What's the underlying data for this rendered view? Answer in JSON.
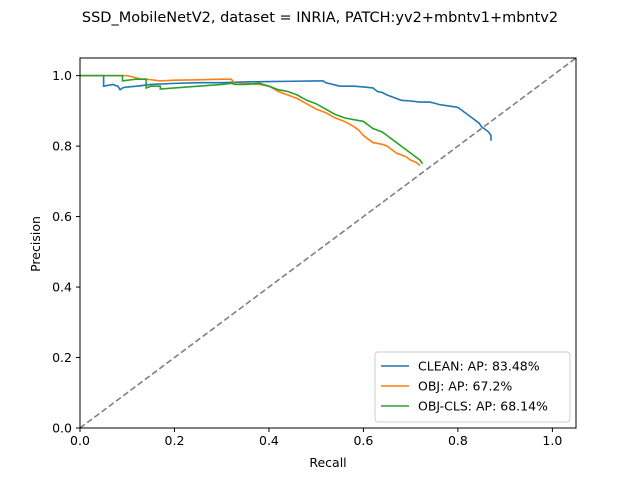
{
  "chart_data": {
    "type": "line",
    "title": "SSD_MobileNetV2, dataset = INRIA, PATCH:yv2+mbntv1+mbntv2",
    "xlabel": "Recall",
    "ylabel": "Precision",
    "xlim": [
      0.0,
      1.05
    ],
    "ylim": [
      0.0,
      1.05
    ],
    "xticks": [
      0.0,
      0.2,
      0.4,
      0.6,
      0.8,
      1.0
    ],
    "xtick_labels": [
      "0.0",
      "0.2",
      "0.4",
      "0.6",
      "0.8",
      "1.0"
    ],
    "yticks": [
      0.0,
      0.2,
      0.4,
      0.6,
      0.8,
      1.0
    ],
    "ytick_labels": [
      "0.0",
      "0.2",
      "0.4",
      "0.6",
      "0.8",
      "1.0"
    ],
    "grid": false,
    "legend_position": "lower-right",
    "reference_line": {
      "style": "dashed",
      "color": "#808080",
      "x": [
        0.0,
        1.05
      ],
      "y": [
        0.0,
        1.05
      ]
    },
    "series": [
      {
        "name": "CLEAN: AP: 83.48%",
        "color": "#1f77b4",
        "x": [
          0.0,
          0.05,
          0.05,
          0.07,
          0.075,
          0.08,
          0.085,
          0.09,
          0.095,
          0.12,
          0.15,
          0.2,
          0.25,
          0.3,
          0.35,
          0.4,
          0.45,
          0.5,
          0.515,
          0.52,
          0.55,
          0.58,
          0.6,
          0.62,
          0.625,
          0.63,
          0.64,
          0.65,
          0.66,
          0.67,
          0.68,
          0.7,
          0.72,
          0.74,
          0.75,
          0.76,
          0.78,
          0.8,
          0.81,
          0.82,
          0.83,
          0.84,
          0.845,
          0.85,
          0.855,
          0.86,
          0.865,
          0.87,
          0.87
        ],
        "y": [
          1.0,
          1.0,
          0.97,
          0.975,
          0.972,
          0.97,
          0.96,
          0.965,
          0.967,
          0.97,
          0.975,
          0.978,
          0.98,
          0.98,
          0.982,
          0.983,
          0.984,
          0.985,
          0.985,
          0.98,
          0.97,
          0.97,
          0.968,
          0.965,
          0.96,
          0.955,
          0.952,
          0.945,
          0.94,
          0.935,
          0.93,
          0.928,
          0.925,
          0.925,
          0.922,
          0.918,
          0.914,
          0.91,
          0.9,
          0.89,
          0.88,
          0.87,
          0.865,
          0.855,
          0.85,
          0.845,
          0.84,
          0.83,
          0.815
        ]
      },
      {
        "name": "OBJ: AP: 67.2%",
        "color": "#ff7f0e",
        "x": [
          0.0,
          0.1,
          0.13,
          0.14,
          0.17,
          0.2,
          0.25,
          0.3,
          0.32,
          0.33,
          0.35,
          0.38,
          0.4,
          0.42,
          0.44,
          0.46,
          0.48,
          0.5,
          0.52,
          0.54,
          0.56,
          0.58,
          0.59,
          0.6,
          0.61,
          0.62,
          0.64,
          0.65,
          0.66,
          0.67,
          0.68,
          0.69,
          0.7,
          0.71,
          0.715,
          0.72
        ],
        "y": [
          1.0,
          1.0,
          0.99,
          0.99,
          0.985,
          0.987,
          0.988,
          0.99,
          0.99,
          0.975,
          0.978,
          0.975,
          0.97,
          0.955,
          0.945,
          0.935,
          0.92,
          0.905,
          0.895,
          0.88,
          0.87,
          0.855,
          0.845,
          0.83,
          0.82,
          0.81,
          0.805,
          0.8,
          0.79,
          0.78,
          0.775,
          0.77,
          0.76,
          0.755,
          0.75,
          0.745
        ]
      },
      {
        "name": "OBJ-CLS: AP: 68.14%",
        "color": "#2ca02c",
        "x": [
          0.0,
          0.09,
          0.09,
          0.12,
          0.14,
          0.14,
          0.15,
          0.17,
          0.17,
          0.2,
          0.25,
          0.3,
          0.32,
          0.33,
          0.35,
          0.38,
          0.4,
          0.42,
          0.44,
          0.46,
          0.48,
          0.5,
          0.52,
          0.54,
          0.56,
          0.58,
          0.6,
          0.61,
          0.62,
          0.64,
          0.65,
          0.66,
          0.67,
          0.68,
          0.69,
          0.7,
          0.71,
          0.72,
          0.725
        ],
        "y": [
          1.0,
          1.0,
          0.985,
          0.99,
          0.99,
          0.965,
          0.97,
          0.97,
          0.962,
          0.965,
          0.97,
          0.975,
          0.978,
          0.975,
          0.975,
          0.978,
          0.97,
          0.96,
          0.955,
          0.945,
          0.93,
          0.92,
          0.905,
          0.89,
          0.88,
          0.875,
          0.87,
          0.86,
          0.85,
          0.84,
          0.83,
          0.82,
          0.81,
          0.8,
          0.79,
          0.78,
          0.77,
          0.76,
          0.75
        ]
      }
    ]
  }
}
